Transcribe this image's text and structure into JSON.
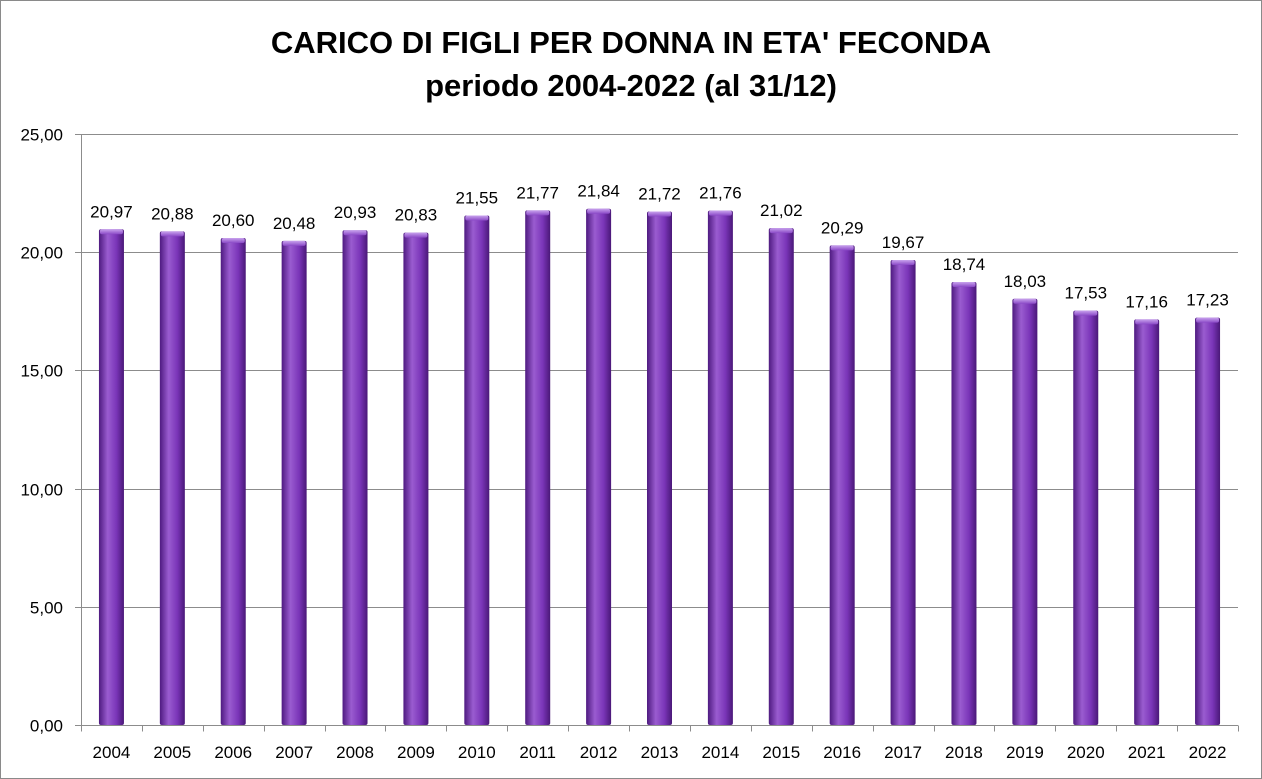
{
  "chart_data": {
    "type": "bar",
    "title_line1": "CARICO DI FIGLI PER DONNA IN ETA' FECONDA",
    "title_line2": "periodo 2004-2022 (al 31/12)",
    "xlabel": "",
    "ylabel": "",
    "categories": [
      "2004",
      "2005",
      "2006",
      "2007",
      "2008",
      "2009",
      "2010",
      "2011",
      "2012",
      "2013",
      "2014",
      "2015",
      "2016",
      "2017",
      "2018",
      "2019",
      "2020",
      "2021",
      "2022"
    ],
    "values": [
      20.97,
      20.88,
      20.6,
      20.48,
      20.93,
      20.83,
      21.55,
      21.77,
      21.84,
      21.72,
      21.76,
      21.02,
      20.29,
      19.67,
      18.74,
      18.03,
      17.53,
      17.16,
      17.23
    ],
    "data_labels": [
      "20,97",
      "20,88",
      "20,60",
      "20,48",
      "20,93",
      "20,83",
      "21,55",
      "21,77",
      "21,84",
      "21,72",
      "21,76",
      "21,02",
      "20,29",
      "19,67",
      "18,74",
      "18,03",
      "17,53",
      "17,16",
      "17,23"
    ],
    "y_ticks": [
      0,
      5,
      10,
      15,
      20,
      25
    ],
    "y_tick_labels": [
      "0,00",
      "5,00",
      "10,00",
      "15,00",
      "20,00",
      "25,00"
    ],
    "ylim": [
      0,
      25
    ],
    "grid": true,
    "legend": "none",
    "colors": {
      "bar_light": "#9a5cd0",
      "bar_mid": "#7a35b8",
      "bar_dark": "#4e1a80",
      "gridline": "#8c8c8c",
      "axis": "#8c8c8c",
      "frame": "#8a8a8a"
    }
  }
}
